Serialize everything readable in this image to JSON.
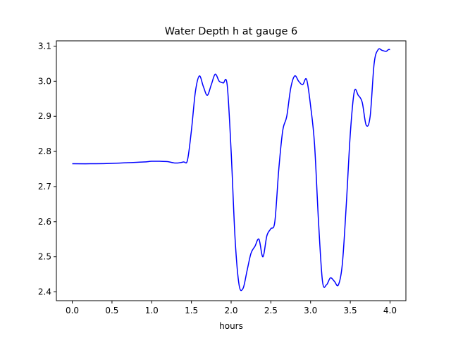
{
  "chart_data": {
    "type": "line",
    "title": "Water Depth h at gauge 6",
    "xlabel": "hours",
    "ylabel": "",
    "xlim": [
      -0.2,
      4.2
    ],
    "ylim": [
      2.375,
      3.115
    ],
    "xticks": [
      0.0,
      0.5,
      1.0,
      1.5,
      2.0,
      2.5,
      3.0,
      3.5,
      4.0
    ],
    "xtick_labels": [
      "0.0",
      "0.5",
      "1.0",
      "1.5",
      "2.0",
      "2.5",
      "3.0",
      "3.5",
      "4.0"
    ],
    "yticks": [
      2.4,
      2.5,
      2.6,
      2.7,
      2.8,
      2.9,
      3.0,
      3.1
    ],
    "ytick_labels": [
      "2.4",
      "2.5",
      "2.6",
      "2.7",
      "2.8",
      "2.9",
      "3.0",
      "3.1"
    ],
    "grid": false,
    "legend": "none",
    "series": [
      {
        "color": "#0000ff",
        "x": [
          0.0,
          0.3,
          0.5,
          0.7,
          0.9,
          1.0,
          1.1,
          1.2,
          1.3,
          1.4,
          1.45,
          1.5,
          1.55,
          1.6,
          1.65,
          1.7,
          1.75,
          1.8,
          1.85,
          1.9,
          1.95,
          2.0,
          2.05,
          2.1,
          2.15,
          2.2,
          2.25,
          2.3,
          2.35,
          2.4,
          2.45,
          2.5,
          2.55,
          2.6,
          2.65,
          2.7,
          2.75,
          2.8,
          2.85,
          2.9,
          2.95,
          3.0,
          3.05,
          3.1,
          3.15,
          3.2,
          3.25,
          3.3,
          3.35,
          3.4,
          3.45,
          3.5,
          3.55,
          3.6,
          3.65,
          3.7,
          3.75,
          3.8,
          3.85,
          3.9,
          3.95,
          3.98,
          4.0
        ],
        "y": [
          2.765,
          2.765,
          2.766,
          2.768,
          2.77,
          2.772,
          2.772,
          2.771,
          2.767,
          2.77,
          2.775,
          2.86,
          2.97,
          3.015,
          2.985,
          2.96,
          2.99,
          3.02,
          3.0,
          2.995,
          2.99,
          2.8,
          2.55,
          2.42,
          2.41,
          2.46,
          2.51,
          2.53,
          2.55,
          2.5,
          2.56,
          2.58,
          2.6,
          2.75,
          2.86,
          2.9,
          2.98,
          3.015,
          3.0,
          2.99,
          3.005,
          2.93,
          2.82,
          2.6,
          2.43,
          2.42,
          2.44,
          2.43,
          2.42,
          2.48,
          2.65,
          2.85,
          2.97,
          2.96,
          2.94,
          2.875,
          2.9,
          3.05,
          3.09,
          3.088,
          3.085,
          3.09,
          3.09
        ]
      }
    ]
  }
}
